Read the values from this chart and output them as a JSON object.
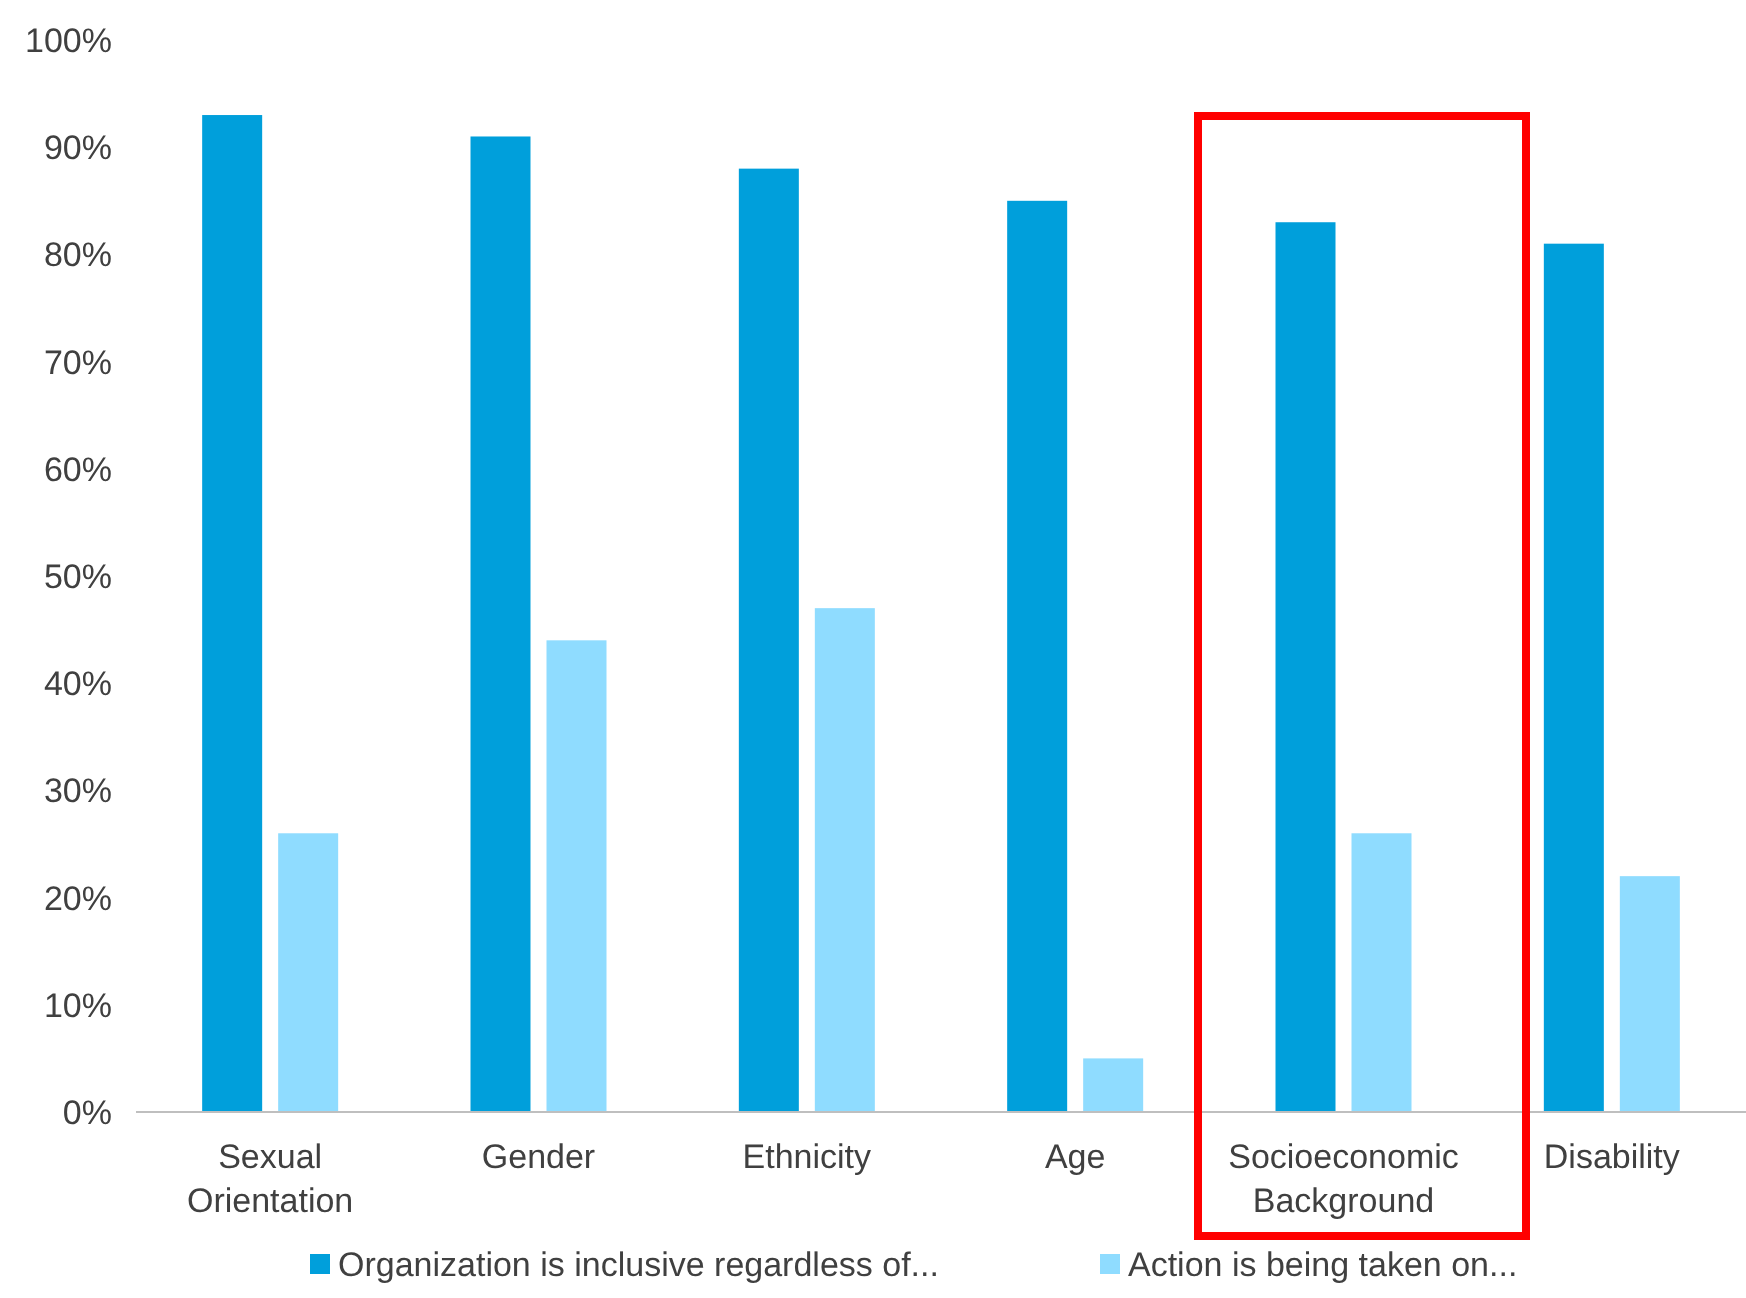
{
  "chart_data": {
    "type": "bar",
    "categories": [
      "Sexual Orientation",
      "Gender",
      "Ethnicity",
      "Age",
      "Socioeconomic Background",
      "Disability"
    ],
    "series": [
      {
        "name": "Organization is inclusive regardless of...",
        "color": "#009fdb",
        "values": [
          93,
          91,
          88,
          85,
          83,
          81
        ]
      },
      {
        "name": "Action is being taken on...",
        "color": "#8fdcff",
        "values": [
          26,
          44,
          47,
          5,
          26,
          22
        ]
      }
    ],
    "ylim": [
      0,
      100
    ],
    "yticks": [
      {
        "value": 0,
        "label": "0%"
      },
      {
        "value": 10,
        "label": "10%"
      },
      {
        "value": 20,
        "label": "20%"
      },
      {
        "value": 30,
        "label": "30%"
      },
      {
        "value": 40,
        "label": "40%"
      },
      {
        "value": 50,
        "label": "50%"
      },
      {
        "value": 60,
        "label": "60%"
      },
      {
        "value": 70,
        "label": "70%"
      },
      {
        "value": 80,
        "label": "80%"
      },
      {
        "value": 90,
        "label": "90%"
      },
      {
        "value": 100,
        "label": "100%"
      }
    ],
    "grid": false,
    "legend": "bottom"
  }
}
